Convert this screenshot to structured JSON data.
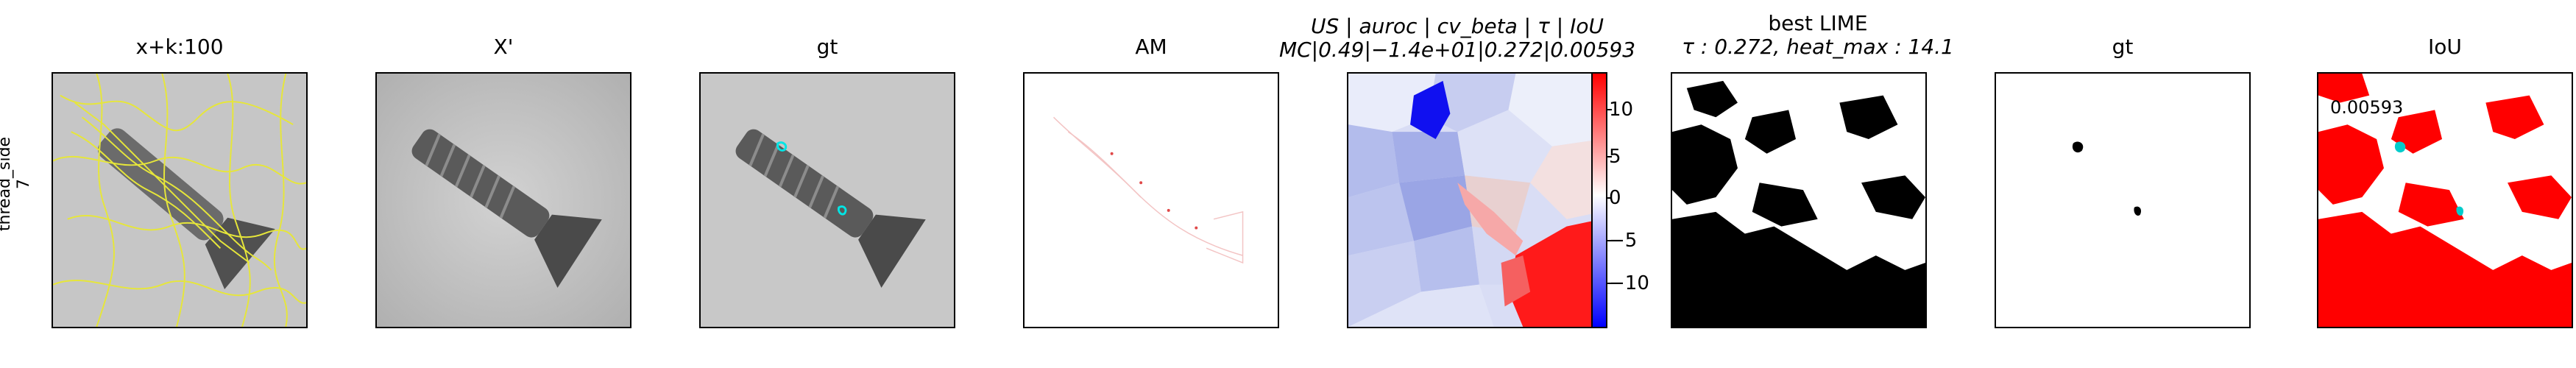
{
  "row_label": {
    "line1": "thread_side",
    "line2": "7"
  },
  "panels": [
    {
      "id": "p1",
      "title": "x+k:100"
    },
    {
      "id": "p2",
      "title": "X'"
    },
    {
      "id": "p3",
      "title": "gt"
    },
    {
      "id": "p4",
      "title": "AM"
    },
    {
      "id": "p5",
      "title_line1": "US | auroc | cv_beta | τ | IoU",
      "title_line2": "MC|0.49|−1.4e+01|0.272|0.00593"
    },
    {
      "id": "p6",
      "title_line1": "best LIME",
      "title_line2": "τ : 0.272, heat_max : 14.1"
    },
    {
      "id": "p7",
      "title": "gt"
    },
    {
      "id": "p8",
      "title": "IoU",
      "annotation": "0.00593"
    }
  ],
  "colorbar": {
    "ticks": [
      "10",
      "5",
      "0",
      "−5",
      "−10"
    ],
    "colors": {
      "high": "#ff0000",
      "mid": "#ffffff",
      "low": "#0000ff"
    }
  }
}
